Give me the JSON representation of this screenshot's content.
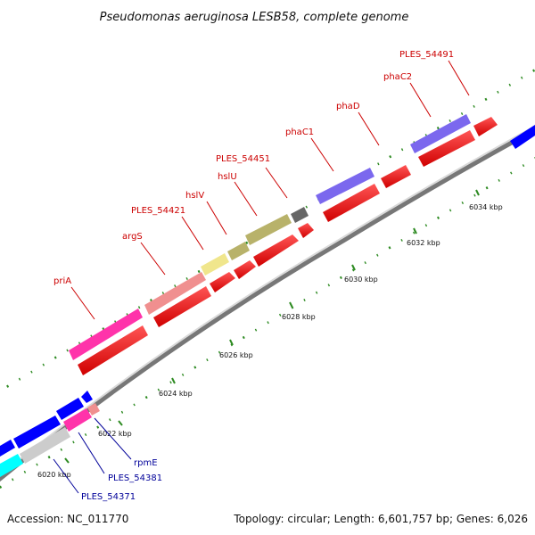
{
  "title": "Pseudomonas aeruginosa LESB58, complete genome",
  "footer": {
    "accession": "Accession: NC_011770",
    "summary": "Topology: circular; Length: 6,601,757 bp; Genes: 6,026"
  },
  "ticks": [
    "6020 kbp",
    "6022 kbp",
    "6024 kbp",
    "6026 kbp",
    "6028 kbp",
    "6030 kbp",
    "6032 kbp",
    "6034 kbp"
  ],
  "colors": {
    "backbone": "#808080",
    "cds_forward": "#ff0000",
    "tick_green": "#2e8b22",
    "label_forward": "#cc0000",
    "label_reverse": "#000099",
    "priA": "#ff33aa",
    "argS": "#f08f8f",
    "hslV": "#f0e68c",
    "hslU": "#b8b26a",
    "PLES_54451": "#666666",
    "phaC": "#7b68ee",
    "reverse_blue": "#0000ff",
    "gray": "#cccccc",
    "cyan": "#00ffff"
  },
  "genes": {
    "forward_labels": [
      "priA",
      "argS",
      "PLES_54421",
      "hslV",
      "hslU",
      "PLES_54451",
      "phaC1",
      "phaD",
      "phaC2",
      "PLES_54491"
    ],
    "reverse_labels": [
      "rpmE",
      "PLES_54381",
      "PLES_54371"
    ]
  }
}
